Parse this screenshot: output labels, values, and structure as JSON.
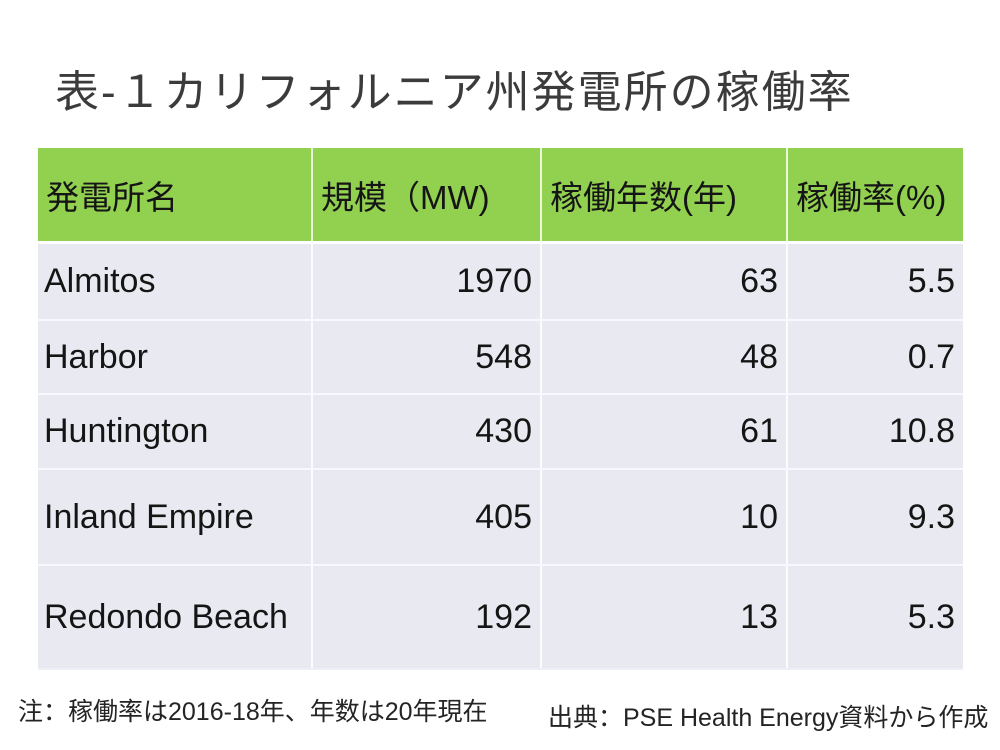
{
  "chart_data": {
    "type": "table",
    "title": "表-１カリフォルニア州発電所の稼働率",
    "columns": [
      "発電所名",
      "規模（MW)",
      "稼働年数(年)",
      "稼働率(%)"
    ],
    "rows": [
      [
        "Almitos",
        "1970",
        "63",
        "5.5"
      ],
      [
        "Harbor",
        "548",
        "48",
        "0.7"
      ],
      [
        "Huntington",
        "430",
        "61",
        "10.8"
      ],
      [
        "Inland Empire",
        "405",
        "10",
        "9.3"
      ],
      [
        "Redondo Beach",
        "192",
        "13",
        "5.3"
      ]
    ],
    "note": "注：稼働率は2016-18年、年数は20年現在",
    "source": "出典：PSE Health Energy資料から作成",
    "legend": "none",
    "grid": "white cell separators"
  },
  "colors": {
    "header_green": "#92D050",
    "row_bg": "#E9EAF1",
    "title_color": "#3B3B3B"
  }
}
